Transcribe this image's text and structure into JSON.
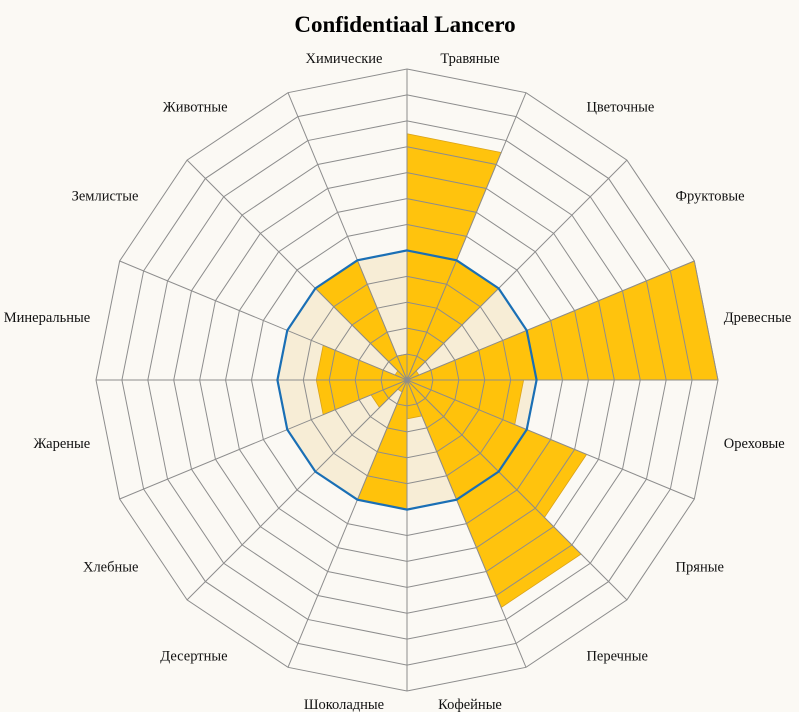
{
  "chart_data": {
    "type": "polar-area",
    "title": "Confidentiaal Lancero",
    "categories": [
      "Травяные",
      "Цветочные",
      "Фруктовые",
      "Древесные",
      "Ореховые",
      "Пряные",
      "Перечные",
      "Кофейные",
      "Шоколадные",
      "Десертные",
      "Хлебные",
      "Жареные",
      "Минеральные",
      "Землистые",
      "Животные",
      "Химические"
    ],
    "values": [
      9.5,
      5.0,
      0.5,
      12.0,
      4.5,
      7.5,
      9.5,
      1.5,
      5.0,
      0.5,
      1.5,
      3.5,
      3.5,
      0.5,
      5.0,
      1.0
    ],
    "reference_ring": 5,
    "radial_max": 12,
    "ring_count": 12,
    "colors": {
      "bar": "#ffc000",
      "bar_stroke": "#d9a21a",
      "ref_ring": "#1a6fb5",
      "inner_fill": "#f5e8cc",
      "grid": "#8d8d8d",
      "background": "#fbf9f4"
    }
  }
}
